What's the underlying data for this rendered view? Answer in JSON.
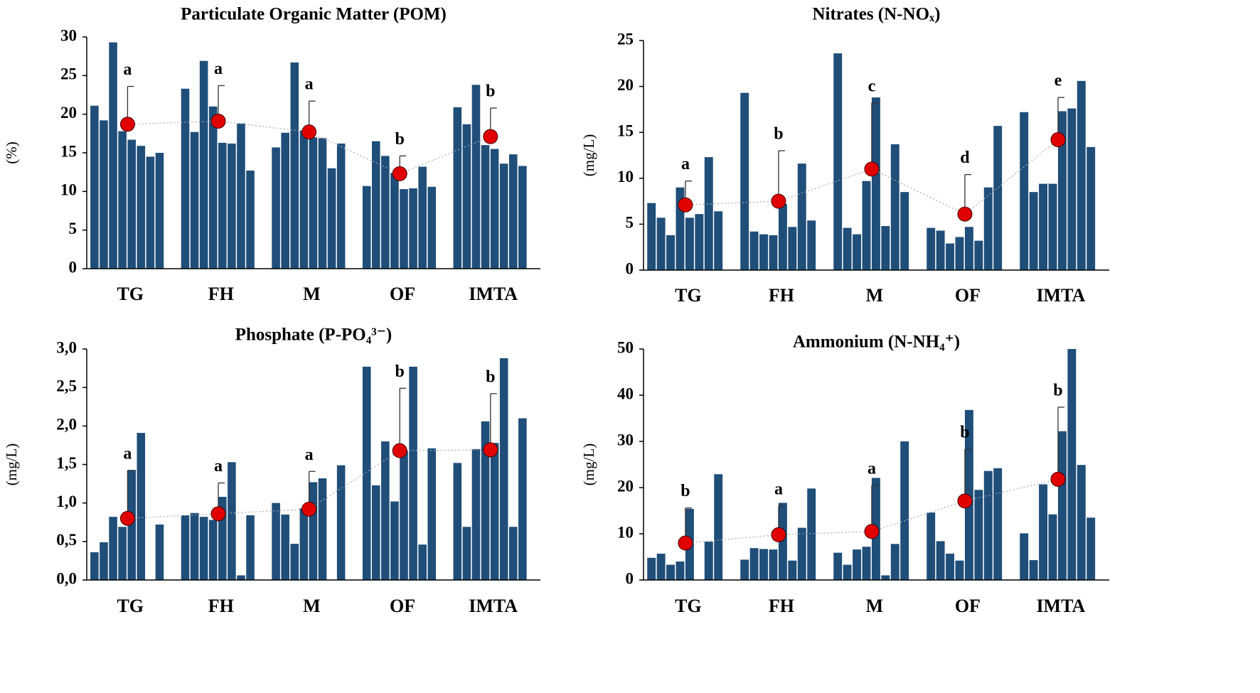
{
  "chart_data": [
    {
      "type": "bar",
      "title": "Particulate Organic Matter (POM)",
      "ylabel": "(%)",
      "categories": [
        "TG",
        "FH",
        "M",
        "OF",
        "IMTA"
      ],
      "groups": [
        [
          21.1,
          19.2,
          29.3,
          17.8,
          16.7,
          15.9,
          14.5,
          15.0
        ],
        [
          23.3,
          17.7,
          26.9,
          21.0,
          16.3,
          16.2,
          18.8,
          12.7
        ],
        [
          15.7,
          17.6,
          26.7,
          17.9,
          17.0,
          16.9,
          13.0,
          16.2
        ],
        [
          10.7,
          16.5,
          14.6,
          12.4,
          10.3,
          10.4,
          13.2,
          10.6
        ],
        [
          20.9,
          18.7,
          23.8,
          16.0,
          15.5,
          13.6,
          14.8,
          13.3
        ]
      ],
      "means": [
        18.7,
        19.1,
        17.7,
        12.3,
        17.1
      ],
      "errors": [
        4.9,
        4.6,
        4.0,
        2.3,
        3.7
      ],
      "letters": [
        "a",
        "a",
        "a",
        "b",
        "b"
      ],
      "ylim": [
        0,
        30
      ],
      "yticks": [
        0,
        5,
        10,
        15,
        20,
        25,
        30
      ],
      "color": "#1f4e79",
      "mean_color": "#e00000"
    },
    {
      "type": "bar",
      "title": "Nitrates (N-NOₓ)",
      "ylabel": "(mg/L)",
      "categories": [
        "TG",
        "FH",
        "M",
        "OF",
        "IMTA"
      ],
      "groups": [
        [
          7.3,
          5.7,
          3.8,
          9.0,
          5.7,
          6.1,
          12.3,
          6.4
        ],
        [
          19.3,
          4.2,
          3.9,
          3.8,
          7.2,
          4.7,
          11.6,
          5.4
        ],
        [
          23.6,
          4.6,
          3.9,
          9.7,
          18.8,
          4.8,
          13.7,
          8.5
        ],
        [
          4.6,
          4.3,
          2.9,
          3.6,
          4.7,
          3.2,
          9.0,
          15.7
        ],
        [
          17.2,
          8.5,
          9.4,
          9.4,
          17.3,
          17.6,
          20.6,
          13.4
        ]
      ],
      "means": [
        7.1,
        7.5,
        11.0,
        6.1,
        14.2
      ],
      "errors": [
        2.6,
        5.5,
        7.2,
        4.3,
        4.6
      ],
      "letters": [
        "a",
        "b",
        "c",
        "d",
        "e"
      ],
      "ylim": [
        0,
        25
      ],
      "yticks": [
        0,
        5,
        10,
        15,
        20,
        25
      ],
      "color": "#1f4e79",
      "mean_color": "#e00000"
    },
    {
      "type": "bar",
      "title": "Phosphate (P-PO₄³⁻)",
      "ylabel": "(mg/L)",
      "categories": [
        "TG",
        "FH",
        "M",
        "OF",
        "IMTA"
      ],
      "groups": [
        [
          0.36,
          0.49,
          0.82,
          0.69,
          1.43,
          1.91,
          0,
          0.72
        ],
        [
          0.84,
          0.87,
          0.82,
          0.78,
          1.08,
          1.53,
          0.06,
          0.84
        ],
        [
          1.0,
          0.85,
          0.47,
          0.93,
          1.27,
          1.32,
          0,
          1.49
        ],
        [
          2.77,
          1.23,
          1.8,
          1.02,
          1.68,
          2.77,
          0.46,
          1.71
        ],
        [
          1.52,
          0.69,
          1.7,
          2.06,
          1.78,
          2.88,
          0.69,
          2.1
        ]
      ],
      "means": [
        0.8,
        0.86,
        0.92,
        1.68,
        1.69
      ],
      "errors": [
        0.62,
        0.4,
        0.49,
        0.81,
        0.73
      ],
      "letters": [
        "a",
        "a",
        "a",
        "b",
        "b"
      ],
      "ylim": [
        0,
        3
      ],
      "yticks": [
        {
          "value": 0,
          "label": "0,0"
        },
        {
          "value": 0.5,
          "label": "0,5"
        },
        {
          "value": 1,
          "label": "1,0"
        },
        {
          "value": 1.5,
          "label": "1,5"
        },
        {
          "value": 2,
          "label": "2,0"
        },
        {
          "value": 2.5,
          "label": "2,5"
        },
        {
          "value": 3,
          "label": "3,0"
        }
      ],
      "color": "#1f4e79",
      "mean_color": "#e00000"
    },
    {
      "type": "bar",
      "title": "Ammonium (N-NH₄⁺)",
      "ylabel": "(mg/L)",
      "categories": [
        "TG",
        "FH",
        "M",
        "OF",
        "IMTA"
      ],
      "groups": [
        [
          4.8,
          5.7,
          3.3,
          4.0,
          15.4,
          0,
          8.3,
          22.9
        ],
        [
          4.4,
          6.9,
          6.7,
          6.6,
          16.7,
          4.2,
          11.3,
          19.8
        ],
        [
          5.9,
          3.3,
          6.6,
          7.2,
          22.1,
          1.0,
          7.8,
          30.0
        ],
        [
          14.6,
          8.4,
          5.7,
          4.2,
          36.8,
          19.5,
          23.6,
          24.2
        ],
        [
          10.1,
          4.3,
          20.7,
          14.2,
          32.2,
          50.0,
          24.9,
          13.5
        ]
      ],
      "means": [
        8.0,
        9.8,
        10.5,
        17.1,
        21.8
      ],
      "errors": [
        7.6,
        6.2,
        10.0,
        11.2,
        15.6
      ],
      "letters": [
        "b",
        "a",
        "a",
        "b",
        "b"
      ],
      "ylim": [
        0,
        50
      ],
      "yticks": [
        0,
        10,
        20,
        30,
        40,
        50
      ],
      "color": "#1f4e79",
      "mean_color": "#e00000"
    }
  ]
}
